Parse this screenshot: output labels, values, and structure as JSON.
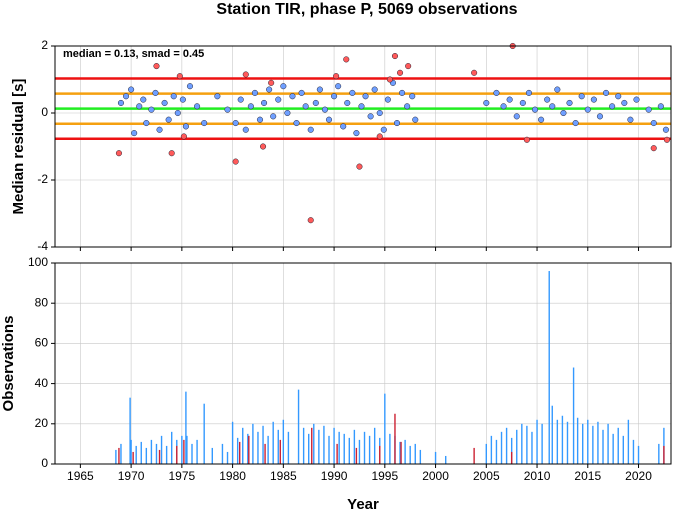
{
  "chart_data": [
    {
      "type": "scatter",
      "title": "Station TIR, phase P, 5069 observations",
      "ylabel": "Median residual [s]",
      "annotation": "median = 0.13, smad = 0.45",
      "xlim": [
        1962.5,
        2023.2
      ],
      "ylim": [
        -4,
        2
      ],
      "xticks": [
        1965,
        1970,
        1975,
        1980,
        1985,
        1990,
        1995,
        2000,
        2005,
        2010,
        2015,
        2020
      ],
      "yticks": [
        -4,
        -2,
        0,
        2
      ],
      "grid": true,
      "hlines": [
        {
          "value": 1.03,
          "color": "#ee1111"
        },
        {
          "value": 0.58,
          "color": "#f5a010"
        },
        {
          "value": 0.13,
          "color": "#22ee22"
        },
        {
          "value": -0.32,
          "color": "#f5a010"
        },
        {
          "value": -0.77,
          "color": "#ee1111"
        }
      ],
      "series": [
        {
          "color": "#6f9fff",
          "x": [
            1969.0,
            1969.5,
            1970,
            1970.3,
            1970.8,
            1971.2,
            1971.5,
            1972,
            1972.4,
            1972.8,
            1973.3,
            1973.7,
            1974.2,
            1974.6,
            1975.1,
            1975.4,
            1975.8,
            1976.5,
            1977.2,
            1978.5,
            1979.5,
            1980.3,
            1980.8,
            1981.3,
            1981.8,
            1982.2,
            1982.7,
            1983.1,
            1983.6,
            1984.0,
            1984.5,
            1985.0,
            1985.4,
            1985.9,
            1986.3,
            1986.8,
            1987.2,
            1987.7,
            1988.2,
            1988.6,
            1989.1,
            1989.5,
            1990,
            1990.4,
            1990.9,
            1991.3,
            1991.8,
            1992.2,
            1992.7,
            1993.1,
            1993.6,
            1994,
            1994.5,
            1994.9,
            1995.3,
            1995.8,
            1996.2,
            1996.7,
            1997.2,
            1997.7,
            1998,
            2005,
            2006,
            2006.7,
            2007.3,
            2008,
            2008.6,
            2009.2,
            2009.8,
            2010.4,
            2011,
            2011.5,
            2012,
            2012.6,
            2013.2,
            2013.8,
            2014.4,
            2015,
            2015.6,
            2016.2,
            2016.8,
            2017.4,
            2018,
            2018.6,
            2019.2,
            2019.8,
            2021,
            2021.5,
            2022.2,
            2022.7
          ],
          "values": [
            0.3,
            0.5,
            0.7,
            -0.6,
            0.2,
            0.4,
            -0.3,
            0.1,
            0.6,
            -0.5,
            0.3,
            -0.2,
            0.5,
            0.0,
            0.4,
            -0.4,
            0.8,
            0.2,
            -0.3,
            0.5,
            0.1,
            -0.3,
            0.4,
            -0.5,
            0.2,
            0.6,
            -0.2,
            0.3,
            0.7,
            -0.1,
            0.4,
            0.8,
            0.0,
            0.5,
            -0.3,
            0.6,
            0.2,
            -0.5,
            0.3,
            0.7,
            0.1,
            -0.2,
            0.5,
            0.8,
            -0.4,
            0.3,
            0.6,
            -0.6,
            0.2,
            0.5,
            -0.1,
            0.7,
            0.0,
            -0.5,
            0.4,
            0.9,
            -0.3,
            0.6,
            0.2,
            0.5,
            -0.2,
            0.3,
            0.6,
            0.2,
            0.4,
            -0.1,
            0.3,
            0.6,
            0.1,
            -0.2,
            0.4,
            0.2,
            0.7,
            0.0,
            0.3,
            -0.3,
            0.5,
            0.1,
            0.4,
            -0.1,
            0.6,
            0.2,
            0.5,
            0.3,
            -0.2,
            0.4,
            0.1,
            -0.3,
            0.2,
            -0.5
          ]
        },
        {
          "color": "#ff5a5a",
          "x": [
            1968.8,
            1972.5,
            1974,
            1974.8,
            1975.2,
            1980.3,
            1981.3,
            1983,
            1983.8,
            1987.7,
            1990.2,
            1991.2,
            1992.5,
            1994.5,
            1995.5,
            1996,
            1996.5,
            1997.3,
            2003.8,
            2007.6,
            2009,
            2021.5,
            2022.8
          ],
          "values": [
            -1.2,
            1.4,
            -1.2,
            1.1,
            -0.7,
            -1.45,
            1.15,
            -1.0,
            0.9,
            -3.2,
            1.1,
            1.6,
            -1.6,
            -0.7,
            1.0,
            1.7,
            1.2,
            1.4,
            1.2,
            2.0,
            -0.8,
            -1.05,
            -0.8
          ]
        }
      ]
    },
    {
      "type": "histogram",
      "xlabel": "Year",
      "ylabel": "Observations",
      "xlim": [
        1962.5,
        2023.2
      ],
      "ylim": [
        0,
        100
      ],
      "xticks": [
        1965,
        1970,
        1975,
        1980,
        1985,
        1990,
        1995,
        2000,
        2005,
        2010,
        2015,
        2020
      ],
      "yticks": [
        0,
        20,
        40,
        60,
        80,
        100
      ],
      "grid": true,
      "series": [
        {
          "color": "#3399ff",
          "x": [
            1968.5,
            1969,
            1969.9,
            1970,
            1970.5,
            1971,
            1971.5,
            1972,
            1972.5,
            1973,
            1973.5,
            1974,
            1974.5,
            1975,
            1975.4,
            1975.5,
            1976,
            1976.5,
            1977.2,
            1978,
            1979,
            1979.5,
            1980,
            1980.5,
            1981,
            1981.5,
            1982,
            1982.5,
            1983,
            1983.5,
            1984,
            1984.5,
            1985,
            1985.5,
            1986.5,
            1987,
            1987.5,
            1988,
            1988.5,
            1989,
            1989.5,
            1990,
            1990.5,
            1991,
            1991.5,
            1992,
            1992.5,
            1993,
            1993.5,
            1994,
            1994.5,
            1995,
            1995.5,
            1996,
            1996.5,
            1997,
            1997.5,
            1998,
            1998.5,
            2000,
            2001,
            2005,
            2005.5,
            2006,
            2006.5,
            2007,
            2007.5,
            2008,
            2008.5,
            2009,
            2009.5,
            2010,
            2010.5,
            2011.2,
            2011.5,
            2012,
            2012.5,
            2013,
            2013.6,
            2014,
            2014.5,
            2015,
            2015.5,
            2016,
            2016.5,
            2017,
            2017.5,
            2018,
            2018.5,
            2019,
            2019.5,
            2020,
            2022,
            2022.5
          ],
          "values": [
            7,
            10,
            33,
            12,
            9,
            11,
            8,
            12,
            10,
            14,
            9,
            16,
            12,
            14,
            36,
            14,
            10,
            12,
            30,
            8,
            10,
            6,
            21,
            13,
            18,
            15,
            20,
            16,
            19,
            14,
            21,
            17,
            22,
            16,
            37,
            18,
            15,
            20,
            17,
            19,
            14,
            18,
            16,
            15,
            13,
            17,
            12,
            16,
            14,
            18,
            13,
            35,
            15,
            14,
            11,
            12,
            9,
            10,
            7,
            6,
            4,
            10,
            14,
            12,
            16,
            18,
            13,
            17,
            20,
            19,
            16,
            22,
            20,
            96,
            29,
            22,
            24,
            21,
            48,
            23,
            20,
            22,
            19,
            21,
            17,
            20,
            15,
            18,
            14,
            22,
            12,
            9,
            10,
            18
          ]
        },
        {
          "color": "#cc2233",
          "x": [
            1968.8,
            1970.2,
            1972.8,
            1974.5,
            1975.2,
            1980.7,
            1981.6,
            1983.2,
            1984.7,
            1987.8,
            1990.3,
            1992.2,
            1994.5,
            1996.0,
            1996.6,
            2003.8,
            2007.5,
            2022.5
          ],
          "values": [
            8,
            6,
            7,
            9,
            12,
            11,
            14,
            10,
            12,
            18,
            10,
            8,
            9,
            25,
            11,
            8,
            6,
            9
          ]
        }
      ]
    }
  ]
}
